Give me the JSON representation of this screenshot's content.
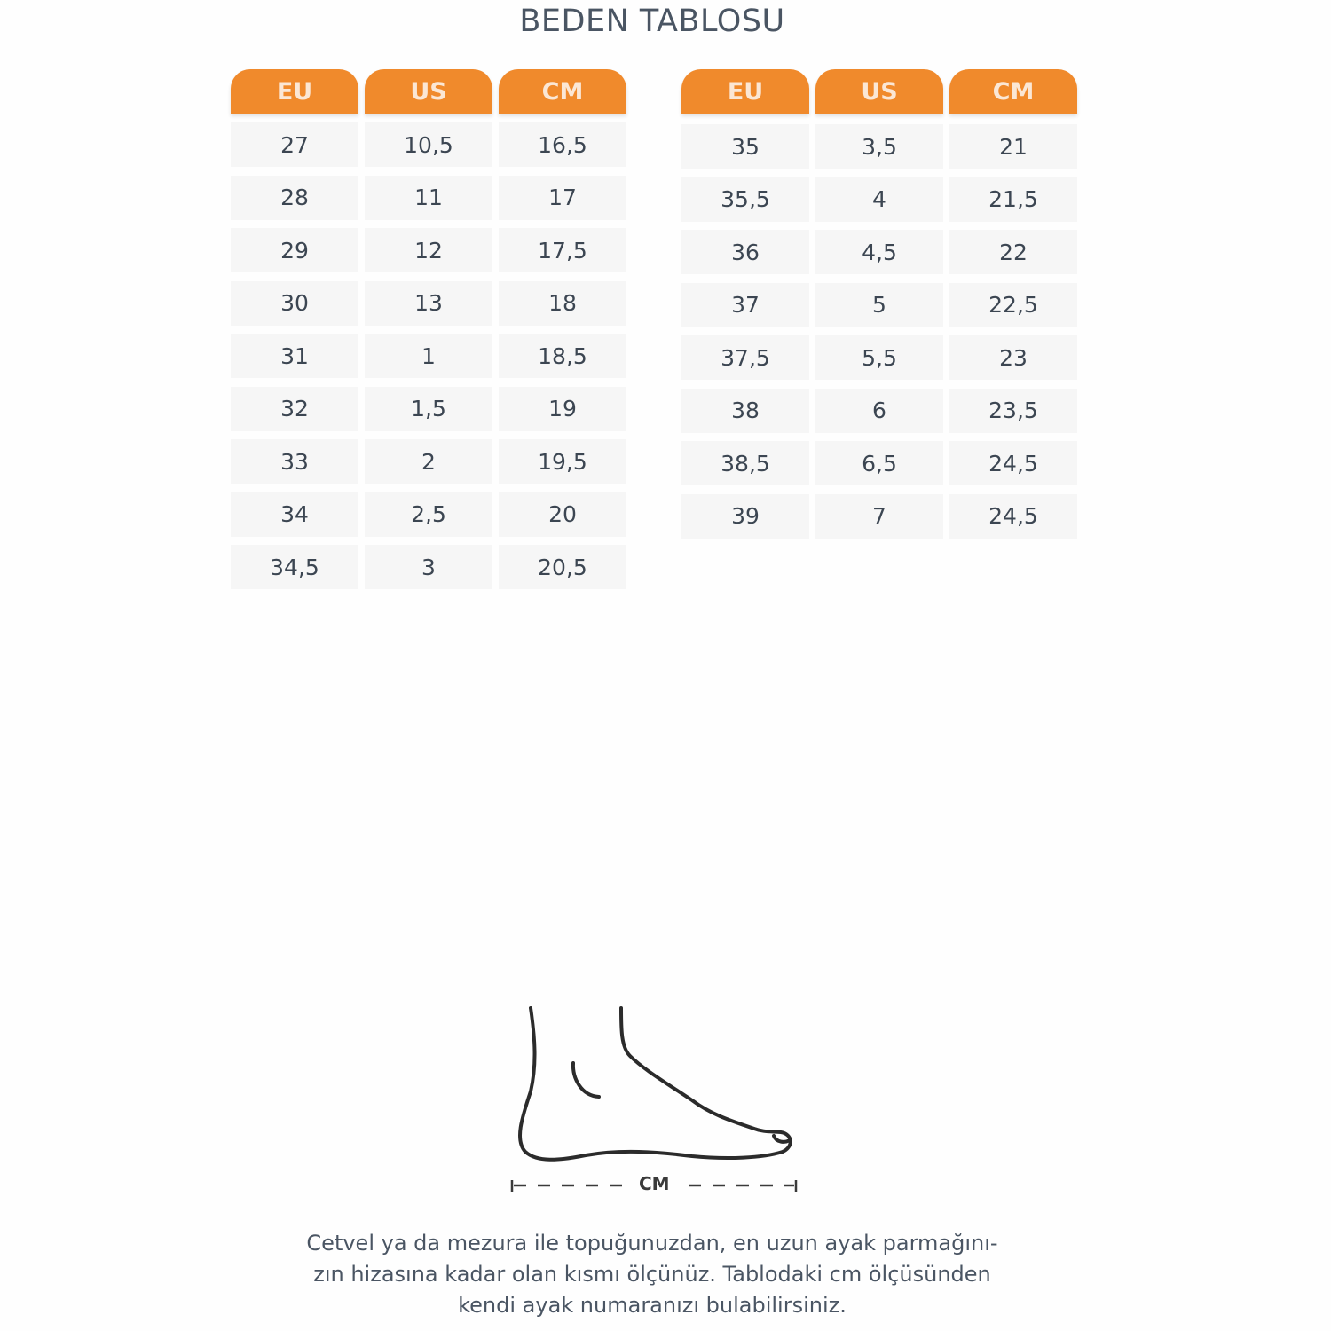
{
  "title": "BEDEN TABLOSU",
  "colors": {
    "header": "#f08a2c",
    "cell": "#f6f6f6",
    "text": "#3c4652"
  },
  "tables": [
    {
      "headers": [
        "EU",
        "US",
        "CM"
      ],
      "rows": [
        [
          "27",
          "10,5",
          "16,5"
        ],
        [
          "28",
          "11",
          "17"
        ],
        [
          "29",
          "12",
          "17,5"
        ],
        [
          "30",
          "13",
          "18"
        ],
        [
          "31",
          "1",
          "18,5"
        ],
        [
          "32",
          "1,5",
          "19"
        ],
        [
          "33",
          "2",
          "19,5"
        ],
        [
          "34",
          "2,5",
          "20"
        ],
        [
          "34,5",
          "3",
          "20,5"
        ]
      ]
    },
    {
      "headers": [
        "EU",
        "US",
        "CM"
      ],
      "rows": [
        [
          "35",
          "3,5",
          "21"
        ],
        [
          "35,5",
          "4",
          "21,5"
        ],
        [
          "36",
          "4,5",
          "22"
        ],
        [
          "37",
          "5",
          "22,5"
        ],
        [
          "37,5",
          "5,5",
          "23"
        ],
        [
          "38",
          "6",
          "23,5"
        ],
        [
          "38,5",
          "6,5",
          "24,5"
        ],
        [
          "39",
          "7",
          "24,5"
        ]
      ]
    }
  ],
  "diagram": {
    "icon": "foot-outline-icon",
    "measure_label": "CM"
  },
  "note": {
    "line1": "Cetvel ya da mezura ile topuğunuzdan, en uzun ayak parmağını-",
    "line2": "zın hizasına kadar olan kısmı ölçünüz. Tablodaki cm ölçüsünden",
    "line3": "kendi ayak numaranızı bulabilirsiniz."
  }
}
